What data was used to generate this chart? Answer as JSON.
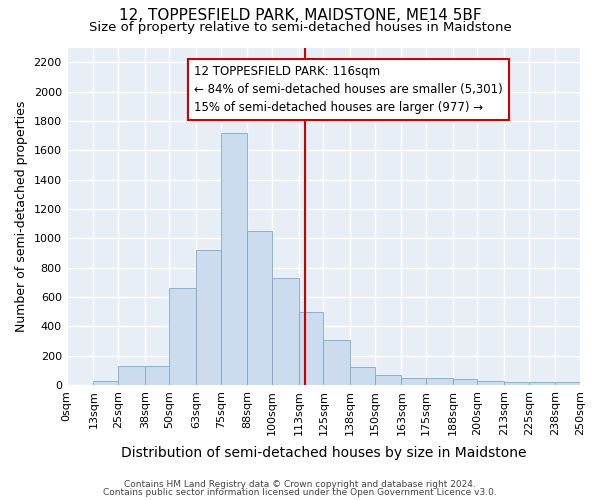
{
  "title": "12, TOPPESFIELD PARK, MAIDSTONE, ME14 5BF",
  "subtitle": "Size of property relative to semi-detached houses in Maidstone",
  "xlabel": "Distribution of semi-detached houses by size in Maidstone",
  "ylabel": "Number of semi-detached properties",
  "bar_color": "#ccdcee",
  "bar_edge_color": "#7aaac8",
  "background_color": "#e8eef6",
  "grid_color": "#ffffff",
  "fig_background": "#ffffff",
  "bin_labels": [
    "0sqm",
    "13sqm",
    "25sqm",
    "38sqm",
    "50sqm",
    "63sqm",
    "75sqm",
    "88sqm",
    "100sqm",
    "113sqm",
    "125sqm",
    "138sqm",
    "150sqm",
    "163sqm",
    "175sqm",
    "188sqm",
    "200sqm",
    "213sqm",
    "225sqm",
    "238sqm",
    "250sqm"
  ],
  "bar_heights": [
    0,
    25,
    130,
    130,
    660,
    920,
    1720,
    1050,
    730,
    500,
    310,
    120,
    70,
    50,
    50,
    40,
    25,
    20,
    20,
    20
  ],
  "bin_edges": [
    0,
    13,
    25,
    38,
    50,
    63,
    75,
    88,
    100,
    113,
    125,
    138,
    150,
    163,
    175,
    188,
    200,
    213,
    225,
    238,
    250
  ],
  "property_size": 116,
  "vline_color": "#cc0000",
  "annotation_line1": "12 TOPPESFIELD PARK: 116sqm",
  "annotation_line2": "← 84% of semi-detached houses are smaller (5,301)",
  "annotation_line3": "15% of semi-detached houses are larger (977) →",
  "annotation_box_facecolor": "#ffffff",
  "annotation_box_edgecolor": "#cc0000",
  "ylim": [
    0,
    2300
  ],
  "yticks": [
    0,
    200,
    400,
    600,
    800,
    1000,
    1200,
    1400,
    1600,
    1800,
    2000,
    2200
  ],
  "footer_text1": "Contains HM Land Registry data © Crown copyright and database right 2024.",
  "footer_text2": "Contains public sector information licensed under the Open Government Licence v3.0.",
  "title_fontsize": 11,
  "subtitle_fontsize": 9.5,
  "xlabel_fontsize": 10,
  "ylabel_fontsize": 9,
  "tick_fontsize": 8,
  "annotation_fontsize": 8.5,
  "footer_fontsize": 6.5
}
